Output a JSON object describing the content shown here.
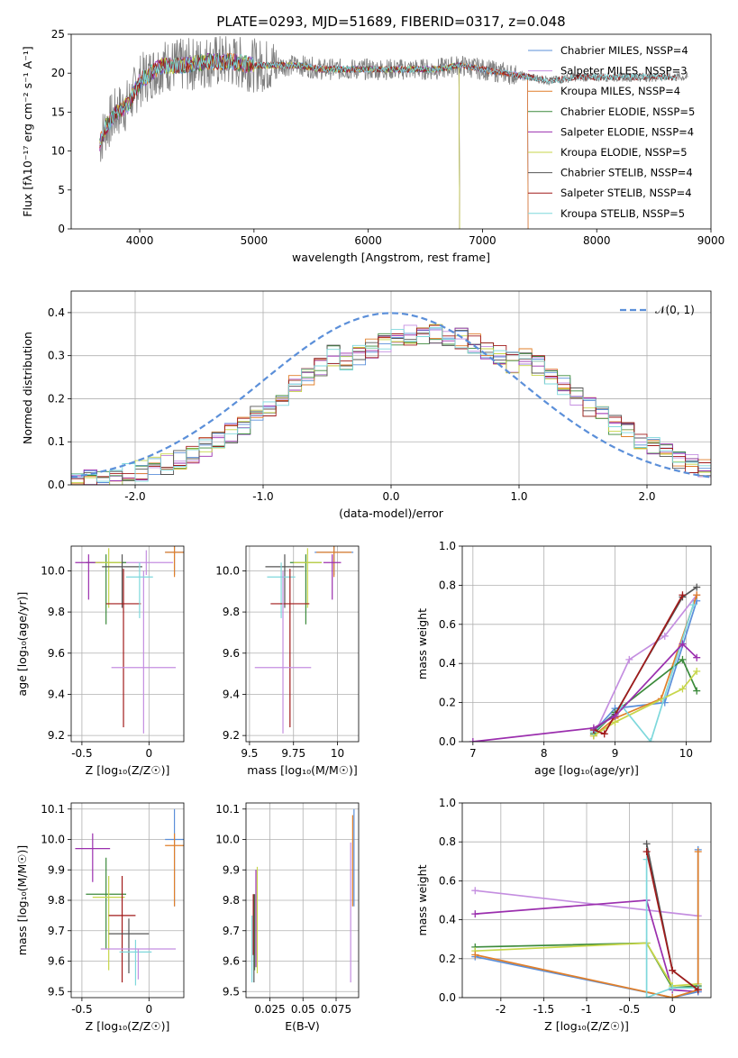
{
  "title": "PLATE=0293, MJD=51689, FIBERID=0317, z=0.048",
  "colors": [
    "#5b8fd9",
    "#c48ee0",
    "#e07f2a",
    "#3b8a3b",
    "#9b2fae",
    "#c7d64a",
    "#555555",
    "#a11a1a",
    "#7ed8dc"
  ],
  "chart_data": [
    {
      "id": "spectrum",
      "type": "line",
      "xlabel": "wavelength [Angstrom, rest frame]",
      "ylabel": "Flux [fλ10⁻¹⁷ erg cm⁻² s⁻¹ A⁻¹]",
      "xlim": [
        3400,
        9000
      ],
      "ylim": [
        0,
        25
      ],
      "xticks": [
        4000,
        5000,
        6000,
        7000,
        8000,
        9000
      ],
      "yticks": [
        0,
        5,
        10,
        15,
        20,
        25
      ],
      "legend_position": "upper-right",
      "legend": [
        "Chabrier MILES, NSSP=4",
        "Salpeter MILES, NSSP=3",
        "Kroupa MILES, NSSP=4",
        "Chabrier ELODIE, NSSP=5",
        "Salpeter ELODIE, NSSP=4",
        "Kroupa ELODIE, NSSP=5",
        "Chabrier STELIB, NSSP=4",
        "Salpeter STELIB, NSSP=4",
        "Kroupa STELIB, NSSP=5"
      ],
      "data_envelope": {
        "x": [
          3650,
          3700,
          3800,
          3900,
          4000,
          4100,
          4200,
          4400,
          4600,
          4800,
          5000,
          5200,
          5400,
          5600,
          5800,
          6000,
          6200,
          6400,
          6600,
          6800,
          7000,
          7200,
          7400,
          7600,
          7800,
          8000,
          8200,
          8400,
          8600,
          8800
        ],
        "y": [
          11,
          13,
          15,
          16,
          19,
          20,
          21,
          21,
          21.5,
          21.5,
          21,
          21,
          21,
          20.5,
          20.5,
          20.5,
          20.5,
          20.5,
          20.5,
          21,
          20.5,
          20,
          19.5,
          19,
          19.5,
          19.5,
          19.5,
          19.5,
          19.5,
          19.5
        ]
      },
      "model_end_x": {
        "MILES": 7400,
        "ELODIE": 6800,
        "STELIB": 8700
      }
    },
    {
      "id": "residuals",
      "type": "line",
      "xlabel": "(data-model)/error",
      "ylabel": "Normed distribution",
      "xlim": [
        -2.5,
        2.5
      ],
      "ylim": [
        0,
        0.45
      ],
      "xticks": [
        -2,
        -1,
        0,
        1,
        2
      ],
      "yticks": [
        0.0,
        0.1,
        0.2,
        0.3,
        0.4
      ],
      "legend": [
        "𝒩(0, 1)"
      ],
      "legend_position": "upper-right",
      "gaussian": {
        "mean": 0,
        "sigma": 1
      }
    },
    {
      "id": "age-vs-Z",
      "type": "scatter",
      "xlabel": "Z [log₁₀(Z/Z☉)]",
      "ylabel": "age  [log₁₀(age/yr)]",
      "xlim": [
        -0.58,
        0.26
      ],
      "ylim": [
        9.17,
        10.12
      ],
      "xticks": [
        -0.5,
        0.0
      ],
      "yticks": [
        9.2,
        9.4,
        9.6,
        9.8,
        10.0
      ],
      "points": [
        {
          "x": 0.19,
          "y": 10.09,
          "xerr": 0.07,
          "yerr": [
            0.11,
            0.04
          ],
          "c": 0
        },
        {
          "x": -0.02,
          "y": 10.04,
          "xerr": 0.2,
          "yerr": [
            0.06,
            0.06
          ],
          "c": 1
        },
        {
          "x": 0.19,
          "y": 10.09,
          "xerr": 0.07,
          "yerr": [
            0.12,
            0.03
          ],
          "c": 2
        },
        {
          "x": -0.32,
          "y": 10.04,
          "xerr": 0.15,
          "yerr": [
            0.3,
            0.04
          ],
          "c": 3
        },
        {
          "x": -0.45,
          "y": 10.04,
          "xerr": 0.1,
          "yerr": [
            0.18,
            0.04
          ],
          "c": 4
        },
        {
          "x": -0.3,
          "y": 10.04,
          "xerr": 0.1,
          "yerr": [
            0.22,
            0.07
          ],
          "c": 5
        },
        {
          "x": -0.2,
          "y": 10.02,
          "xerr": 0.15,
          "yerr": [
            0.2,
            0.06
          ],
          "c": 6
        },
        {
          "x": -0.19,
          "y": 9.84,
          "xerr": 0.13,
          "yerr": [
            0.6,
            0.17
          ],
          "c": 7
        },
        {
          "x": -0.04,
          "y": 9.53,
          "xerr": 0.24,
          "yerr": [
            0.32,
            0.47
          ],
          "c": 1
        },
        {
          "x": -0.07,
          "y": 9.97,
          "xerr": 0.1,
          "yerr": [
            0.2,
            0.07
          ],
          "c": 8
        }
      ]
    },
    {
      "id": "age-vs-mass",
      "type": "scatter",
      "xlabel": "mass [log₁₀(M/M☉)]",
      "ylabel": "",
      "xlim": [
        9.48,
        10.12
      ],
      "ylim": [
        9.17,
        10.12
      ],
      "xticks": [
        9.5,
        9.75,
        10.0
      ],
      "yticks": [
        9.2,
        9.4,
        9.6,
        9.8,
        10.0
      ],
      "points": [
        {
          "x": 9.98,
          "y": 10.09,
          "xerr": 0.11,
          "yerr": [
            0.11,
            0.04
          ],
          "c": 0
        },
        {
          "x": 9.98,
          "y": 10.09,
          "xerr": 0.1,
          "yerr": [
            0.12,
            0.03
          ],
          "c": 2
        },
        {
          "x": 9.97,
          "y": 10.04,
          "xerr": 0.05,
          "yerr": [
            0.18,
            0.04
          ],
          "c": 4
        },
        {
          "x": 9.82,
          "y": 10.04,
          "xerr": 0.09,
          "yerr": [
            0.3,
            0.04
          ],
          "c": 3
        },
        {
          "x": 9.83,
          "y": 10.04,
          "xerr": 0.08,
          "yerr": [
            0.22,
            0.07
          ],
          "c": 5
        },
        {
          "x": 9.7,
          "y": 10.02,
          "xerr": 0.11,
          "yerr": [
            0.2,
            0.06
          ],
          "c": 6
        },
        {
          "x": 9.68,
          "y": 9.97,
          "xerr": 0.08,
          "yerr": [
            0.2,
            0.07
          ],
          "c": 8
        },
        {
          "x": 9.73,
          "y": 9.84,
          "xerr": 0.11,
          "yerr": [
            0.6,
            0.17
          ],
          "c": 7
        },
        {
          "x": 9.69,
          "y": 9.53,
          "xerr": 0.16,
          "yerr": [
            0.32,
            0.47
          ],
          "c": 1
        }
      ]
    },
    {
      "id": "massweight-vs-age",
      "type": "line",
      "xlabel": "age  [log₁₀(age/yr)]",
      "ylabel": "mass weight",
      "xlim": [
        6.85,
        10.35
      ],
      "ylim": [
        0,
        1.0
      ],
      "xticks": [
        7,
        8,
        9,
        10
      ],
      "yticks": [
        0.0,
        0.2,
        0.4,
        0.6,
        0.8,
        1.0
      ],
      "series": [
        {
          "c": 1,
          "x": [
            8.7,
            9.2,
            9.7,
            10.15
          ],
          "y": [
            0.03,
            0.42,
            0.54,
            0.75
          ]
        },
        {
          "c": 0,
          "x": [
            8.7,
            9.0,
            9.7,
            10.15
          ],
          "y": [
            0.05,
            0.17,
            0.2,
            0.72
          ]
        },
        {
          "c": 2,
          "x": [
            8.7,
            9.0,
            9.65,
            10.15
          ],
          "y": [
            0.03,
            0.12,
            0.22,
            0.75
          ]
        },
        {
          "c": 3,
          "x": [
            8.7,
            9.0,
            9.95,
            10.15
          ],
          "y": [
            0.04,
            0.15,
            0.42,
            0.26
          ]
        },
        {
          "c": 5,
          "x": [
            8.7,
            9.0,
            9.95,
            10.15
          ],
          "y": [
            0.03,
            0.1,
            0.27,
            0.36
          ]
        },
        {
          "c": 8,
          "x": [
            8.7,
            9.1,
            9.5,
            10.1
          ],
          "y": [
            0.05,
            0.18,
            0.0,
            0.7
          ]
        },
        {
          "c": 6,
          "x": [
            8.7,
            9.0,
            9.95,
            10.15
          ],
          "y": [
            0.06,
            0.14,
            0.74,
            0.79
          ]
        },
        {
          "c": 7,
          "x": [
            8.7,
            8.85,
            9.95
          ],
          "y": [
            0.06,
            0.04,
            0.75
          ]
        },
        {
          "c": 4,
          "x": [
            7.0,
            8.7,
            9.0,
            9.95,
            10.15
          ],
          "y": [
            0.0,
            0.07,
            0.13,
            0.5,
            0.43
          ]
        }
      ]
    },
    {
      "id": "mass-vs-Z",
      "type": "scatter",
      "xlabel": "Z [log₁₀(Z/Z☉)]",
      "ylabel": "mass [log₁₀(M/M☉)]",
      "xlim": [
        -0.58,
        0.26
      ],
      "ylim": [
        9.48,
        10.12
      ],
      "xticks": [
        -0.5,
        0.0
      ],
      "yticks": [
        9.5,
        9.6,
        9.7,
        9.8,
        9.9,
        10.0,
        10.1
      ],
      "points": [
        {
          "x": 0.19,
          "y": 10.0,
          "xerr": 0.07,
          "yerr": [
            0.22,
            0.1
          ],
          "c": 0
        },
        {
          "x": 0.19,
          "y": 9.98,
          "xerr": 0.07,
          "yerr": [
            0.2,
            0.04
          ],
          "c": 2
        },
        {
          "x": -0.42,
          "y": 9.97,
          "xerr": 0.13,
          "yerr": [
            0.11,
            0.05
          ],
          "c": 4
        },
        {
          "x": -0.32,
          "y": 9.82,
          "xerr": 0.15,
          "yerr": [
            0.18,
            0.12
          ],
          "c": 3
        },
        {
          "x": -0.3,
          "y": 9.81,
          "xerr": 0.12,
          "yerr": [
            0.24,
            0.07
          ],
          "c": 5
        },
        {
          "x": -0.2,
          "y": 9.75,
          "xerr": 0.1,
          "yerr": [
            0.22,
            0.13
          ],
          "c": 7
        },
        {
          "x": -0.15,
          "y": 9.69,
          "xerr": 0.15,
          "yerr": [
            0.13,
            0.05
          ],
          "c": 6
        },
        {
          "x": -0.1,
          "y": 9.63,
          "xerr": 0.12,
          "yerr": [
            0.11,
            0.04
          ],
          "c": 8
        },
        {
          "x": -0.08,
          "y": 9.64,
          "xerr": 0.28,
          "yerr": [
            0.1,
            0.0
          ],
          "c": 1
        }
      ]
    },
    {
      "id": "mass-vs-EBV",
      "type": "scatter",
      "xlabel": "E(B-V)",
      "ylabel": "",
      "xlim": [
        0.007,
        0.092
      ],
      "ylim": [
        9.48,
        10.12
      ],
      "xticks": [
        0.025,
        0.05,
        0.075
      ],
      "yticks": [
        9.5,
        9.6,
        9.7,
        9.8,
        9.9,
        10.0,
        10.1
      ],
      "vlines": [
        {
          "x": 0.0885,
          "y0": 9.78,
          "y1": 10.1,
          "c": 0
        },
        {
          "x": 0.0875,
          "y0": 9.78,
          "y1": 10.08,
          "c": 2
        },
        {
          "x": 0.086,
          "y0": 9.53,
          "y1": 9.99,
          "c": 1
        },
        {
          "x": 0.0145,
          "y0": 9.58,
          "y1": 9.9,
          "c": 4
        },
        {
          "x": 0.0135,
          "y0": 9.57,
          "y1": 9.82,
          "c": 3
        },
        {
          "x": 0.0155,
          "y0": 9.56,
          "y1": 9.91,
          "c": 5
        },
        {
          "x": 0.013,
          "y0": 9.53,
          "y1": 9.82,
          "c": 6
        },
        {
          "x": 0.0125,
          "y0": 9.62,
          "y1": 9.82,
          "c": 7
        },
        {
          "x": 0.0115,
          "y0": 9.53,
          "y1": 9.75,
          "c": 8
        }
      ]
    },
    {
      "id": "massweight-vs-Z",
      "type": "line",
      "xlabel": "Z [log₁₀(Z/Z☉)]",
      "ylabel": "mass weight",
      "xlim": [
        -2.45,
        0.45
      ],
      "ylim": [
        0,
        1.0
      ],
      "xticks": [
        -2.0,
        -1.5,
        -1.0,
        -0.5,
        0.0
      ],
      "yticks": [
        0.0,
        0.2,
        0.4,
        0.6,
        0.8,
        1.0
      ],
      "series": [
        {
          "c": 1,
          "x": [
            -2.3,
            0.3
          ],
          "y": [
            0.55,
            0.42
          ]
        },
        {
          "c": 4,
          "x": [
            -2.3,
            -0.3,
            -0.0,
            0.3
          ],
          "y": [
            0.43,
            0.5,
            0.04,
            0.03
          ]
        },
        {
          "c": 3,
          "x": [
            -2.3,
            -0.3,
            -0.0,
            0.3
          ],
          "y": [
            0.26,
            0.28,
            0.05,
            0.06
          ]
        },
        {
          "c": 5,
          "x": [
            -2.3,
            -0.3,
            -0.0,
            0.3
          ],
          "y": [
            0.24,
            0.28,
            0.06,
            0.07
          ]
        },
        {
          "c": 0,
          "x": [
            -2.3,
            -0.0,
            0.3,
            0.3
          ],
          "y": [
            0.21,
            0.0,
            0.03,
            0.76
          ]
        },
        {
          "c": 2,
          "x": [
            -2.3,
            -0.0,
            0.3,
            0.3
          ],
          "y": [
            0.22,
            0.0,
            0.04,
            0.75
          ]
        },
        {
          "c": 8,
          "x": [
            -0.3,
            -0.3,
            -0.0,
            0.3
          ],
          "y": [
            0.71,
            0.0,
            0.05,
            0.05
          ]
        },
        {
          "c": 6,
          "x": [
            -0.3,
            -0.0,
            0.3
          ],
          "y": [
            0.79,
            0.14,
            0.04
          ]
        },
        {
          "c": 7,
          "x": [
            -0.3,
            -0.0,
            0.3
          ],
          "y": [
            0.75,
            0.14,
            0.04
          ]
        }
      ]
    }
  ]
}
